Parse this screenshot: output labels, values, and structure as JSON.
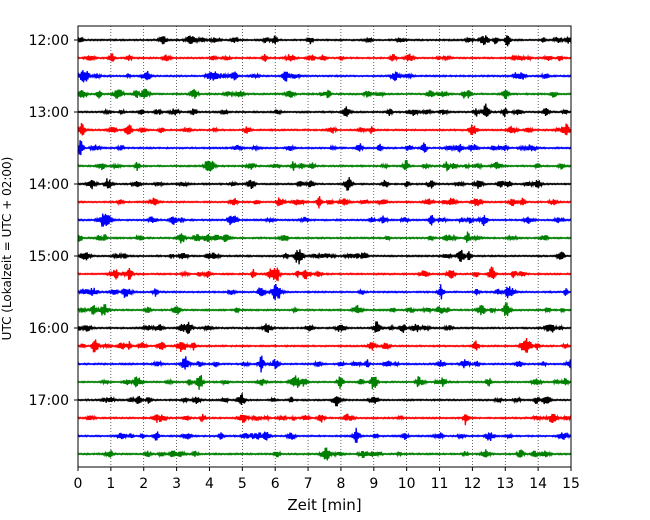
{
  "chart_data": {
    "type": "line",
    "title": "",
    "xlabel": "Zeit  [min]",
    "ylabel": "UTC (Lokalzeit = UTC + 02:00)",
    "xlim": [
      0,
      15
    ],
    "x_ticks": [
      0,
      1,
      2,
      3,
      4,
      5,
      6,
      7,
      8,
      9,
      10,
      11,
      12,
      13,
      14,
      15
    ],
    "x_tick_labels": [
      "0",
      "1",
      "2",
      "3",
      "4",
      "5",
      "6",
      "7",
      "8",
      "9",
      "10",
      "11",
      "12",
      "13",
      "14",
      "15"
    ],
    "y_tick_labels": [
      "12:00",
      "13:00",
      "14:00",
      "15:00",
      "16:00",
      "17:00"
    ],
    "grid": "vertical dotted at each minute",
    "trace_colors": [
      "#000000",
      "#ff0000",
      "#0000ff",
      "#008000"
    ],
    "traces_per_hour": 4,
    "trace_minutes": 15,
    "trace_start_times": [
      "12:00",
      "12:15",
      "12:30",
      "12:45",
      "13:00",
      "13:15",
      "13:30",
      "13:45",
      "14:00",
      "14:15",
      "14:30",
      "14:45",
      "15:00",
      "15:15",
      "15:30",
      "15:45",
      "16:00",
      "16:15",
      "16:30",
      "16:45",
      "17:00",
      "17:15",
      "17:30",
      "17:45"
    ],
    "notable_events": [
      {
        "trace": "15:15",
        "minute": 12.6,
        "amplitude": "large"
      },
      {
        "trace": "16:45",
        "minute": 3.7,
        "amplitude": "large"
      },
      {
        "trace": "16:45",
        "minute": 9.0,
        "amplitude": "large"
      }
    ]
  }
}
